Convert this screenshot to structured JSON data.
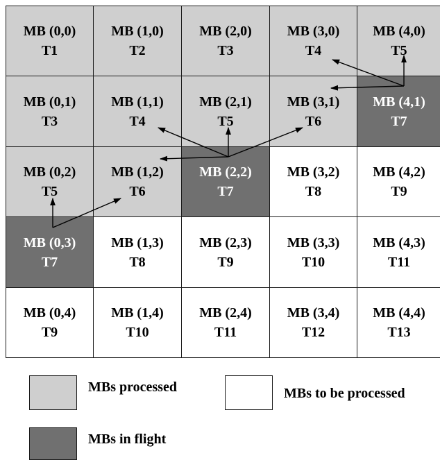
{
  "colors": {
    "processed": "#cfcfcf",
    "in_flight": "#707070",
    "to_be_processed": "#ffffff",
    "grid_line": "#1a1a1a",
    "arrow": "#000000"
  },
  "grid": {
    "columns": 5,
    "rows": 5,
    "cells": [
      {
        "mb": "MB (0,0)",
        "t": "T1",
        "state": "processed"
      },
      {
        "mb": "MB (1,0)",
        "t": "T2",
        "state": "processed"
      },
      {
        "mb": "MB (2,0)",
        "t": "T3",
        "state": "processed"
      },
      {
        "mb": "MB (3,0)",
        "t": "T4",
        "state": "processed"
      },
      {
        "mb": "MB (4,0)",
        "t": "T5",
        "state": "processed"
      },
      {
        "mb": "MB (0,1)",
        "t": "T3",
        "state": "processed"
      },
      {
        "mb": "MB (1,1)",
        "t": "T4",
        "state": "processed"
      },
      {
        "mb": "MB (2,1)",
        "t": "T5",
        "state": "processed"
      },
      {
        "mb": "MB (3,1)",
        "t": "T6",
        "state": "processed"
      },
      {
        "mb": "MB (4,1)",
        "t": "T7",
        "state": "inflight"
      },
      {
        "mb": "MB (0,2)",
        "t": "T5",
        "state": "processed"
      },
      {
        "mb": "MB (1,2)",
        "t": "T6",
        "state": "processed"
      },
      {
        "mb": "MB (2,2)",
        "t": "T7",
        "state": "inflight"
      },
      {
        "mb": "MB (3,2)",
        "t": "T8",
        "state": "pending"
      },
      {
        "mb": "MB (4,2)",
        "t": "T9",
        "state": "pending"
      },
      {
        "mb": "MB (0,3)",
        "t": "T7",
        "state": "inflight"
      },
      {
        "mb": "MB (1,3)",
        "t": "T8",
        "state": "pending"
      },
      {
        "mb": "MB (2,3)",
        "t": "T9",
        "state": "pending"
      },
      {
        "mb": "MB (3,3)",
        "t": "T10",
        "state": "pending"
      },
      {
        "mb": "MB (4,3)",
        "t": "T11",
        "state": "pending"
      },
      {
        "mb": "MB (0,4)",
        "t": "T9",
        "state": "pending"
      },
      {
        "mb": "MB (1,4)",
        "t": "T10",
        "state": "pending"
      },
      {
        "mb": "MB (2,4)",
        "t": "T11",
        "state": "pending"
      },
      {
        "mb": "MB (3,4)",
        "t": "T12",
        "state": "pending"
      },
      {
        "mb": "MB (4,4)",
        "t": "T13",
        "state": "pending"
      }
    ]
  },
  "dependencies": [
    {
      "from": "MB (4,1)",
      "to": "MB (3,0)"
    },
    {
      "from": "MB (4,1)",
      "to": "MB (4,0)"
    },
    {
      "from": "MB (4,1)",
      "to": "MB (3,1)"
    },
    {
      "from": "MB (2,2)",
      "to": "MB (1,1)"
    },
    {
      "from": "MB (2,2)",
      "to": "MB (2,1)"
    },
    {
      "from": "MB (2,2)",
      "to": "MB (3,1)"
    },
    {
      "from": "MB (2,2)",
      "to": "MB (1,2)"
    },
    {
      "from": "MB (0,3)",
      "to": "MB (0,2)"
    },
    {
      "from": "MB (0,3)",
      "to": "MB (1,2)"
    }
  ],
  "legend": {
    "processed": "MBs processed",
    "to_be_processed": "MBs to be processed",
    "in_flight": "MBs in flight"
  }
}
